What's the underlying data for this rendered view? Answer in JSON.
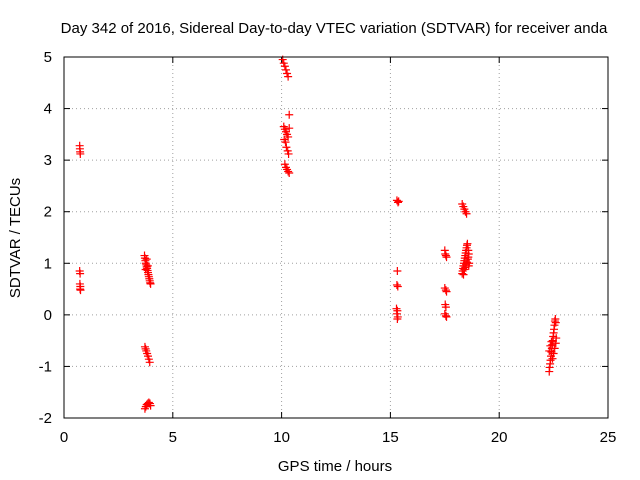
{
  "chart_data": {
    "type": "scatter",
    "title": "Day 342 of 2016, Sidereal Day-to-day VTEC variation (SDTVAR) for receiver anda",
    "xlabel": "GPS time / hours",
    "ylabel": "SDTVAR / TECUs",
    "xlim": [
      0,
      25
    ],
    "ylim": [
      -2,
      5
    ],
    "xticks": [
      0,
      5,
      10,
      15,
      20,
      25
    ],
    "yticks": [
      -2,
      -1,
      0,
      1,
      2,
      3,
      4,
      5
    ],
    "xtick_labels": [
      "0",
      "5",
      "10",
      "15",
      "20",
      "25"
    ],
    "ytick_labels": [
      "-2",
      "-1",
      "0",
      "1",
      "2",
      "3",
      "4",
      "5"
    ],
    "grid": true,
    "marker": "+",
    "series": [
      {
        "name": "SDTVAR",
        "color": "#ff0000",
        "points": [
          [
            0.72,
            3.28
          ],
          [
            0.73,
            3.22
          ],
          [
            0.74,
            3.16
          ],
          [
            0.75,
            3.12
          ],
          [
            0.72,
            0.85
          ],
          [
            0.74,
            0.8
          ],
          [
            0.73,
            0.6
          ],
          [
            0.75,
            0.55
          ],
          [
            0.74,
            0.5
          ],
          [
            0.76,
            0.48
          ],
          [
            3.7,
            1.15
          ],
          [
            3.72,
            1.1
          ],
          [
            3.74,
            1.05
          ],
          [
            3.76,
            1.0
          ],
          [
            3.78,
            0.97
          ],
          [
            3.8,
            0.93
          ],
          [
            3.82,
            0.9
          ],
          [
            3.84,
            0.86
          ],
          [
            3.86,
            0.82
          ],
          [
            3.88,
            0.78
          ],
          [
            3.9,
            0.74
          ],
          [
            3.92,
            0.7
          ],
          [
            3.94,
            0.66
          ],
          [
            3.96,
            0.62
          ],
          [
            3.98,
            0.6
          ],
          [
            3.75,
            0.88
          ],
          [
            3.8,
            1.08
          ],
          [
            3.85,
            0.95
          ],
          [
            3.72,
            -0.62
          ],
          [
            3.75,
            -0.66
          ],
          [
            3.78,
            -0.7
          ],
          [
            3.82,
            -0.75
          ],
          [
            3.86,
            -0.8
          ],
          [
            3.9,
            -0.86
          ],
          [
            3.94,
            -0.92
          ],
          [
            3.72,
            -1.82
          ],
          [
            3.76,
            -1.78
          ],
          [
            3.8,
            -1.74
          ],
          [
            3.85,
            -1.72
          ],
          [
            3.9,
            -1.7
          ],
          [
            3.95,
            -1.72
          ],
          [
            3.98,
            -1.76
          ],
          [
            10.05,
            4.95
          ],
          [
            10.1,
            4.88
          ],
          [
            10.15,
            4.82
          ],
          [
            10.2,
            4.75
          ],
          [
            10.25,
            4.68
          ],
          [
            10.3,
            4.62
          ],
          [
            10.35,
            3.88
          ],
          [
            10.1,
            3.65
          ],
          [
            10.15,
            3.6
          ],
          [
            10.2,
            3.55
          ],
          [
            10.25,
            3.5
          ],
          [
            10.3,
            3.45
          ],
          [
            10.12,
            3.4
          ],
          [
            10.18,
            3.35
          ],
          [
            10.22,
            3.25
          ],
          [
            10.28,
            3.18
          ],
          [
            10.32,
            3.12
          ],
          [
            10.35,
            3.62
          ],
          [
            10.15,
            2.92
          ],
          [
            10.2,
            2.86
          ],
          [
            10.25,
            2.82
          ],
          [
            10.3,
            2.78
          ],
          [
            10.35,
            2.75
          ],
          [
            15.3,
            2.22
          ],
          [
            15.35,
            2.18
          ],
          [
            15.38,
            2.2
          ],
          [
            15.32,
            0.85
          ],
          [
            15.3,
            0.58
          ],
          [
            15.34,
            0.55
          ],
          [
            15.28,
            0.12
          ],
          [
            15.32,
            0.08
          ],
          [
            15.3,
            0.02
          ],
          [
            15.34,
            -0.04
          ],
          [
            15.32,
            -0.08
          ],
          [
            17.5,
            1.25
          ],
          [
            17.52,
            1.18
          ],
          [
            17.55,
            1.15
          ],
          [
            17.58,
            1.12
          ],
          [
            17.5,
            0.52
          ],
          [
            17.55,
            0.48
          ],
          [
            17.58,
            0.45
          ],
          [
            17.52,
            0.2
          ],
          [
            17.55,
            0.15
          ],
          [
            17.5,
            0.02
          ],
          [
            17.55,
            -0.02
          ],
          [
            17.58,
            -0.04
          ],
          [
            18.3,
            2.15
          ],
          [
            18.35,
            2.1
          ],
          [
            18.4,
            2.05
          ],
          [
            18.45,
            2.0
          ],
          [
            18.5,
            1.96
          ],
          [
            18.3,
            0.8
          ],
          [
            18.32,
            0.85
          ],
          [
            18.34,
            0.9
          ],
          [
            18.36,
            0.95
          ],
          [
            18.38,
            1.0
          ],
          [
            18.4,
            1.05
          ],
          [
            18.42,
            1.1
          ],
          [
            18.44,
            1.15
          ],
          [
            18.46,
            1.2
          ],
          [
            18.48,
            1.25
          ],
          [
            18.5,
            1.3
          ],
          [
            18.52,
            1.35
          ],
          [
            18.54,
            1.38
          ],
          [
            18.36,
            0.78
          ],
          [
            18.4,
            0.88
          ],
          [
            18.44,
            0.92
          ],
          [
            18.48,
            0.98
          ],
          [
            18.52,
            1.02
          ],
          [
            18.56,
            1.08
          ],
          [
            18.58,
            1.12
          ],
          [
            18.6,
            1.18
          ],
          [
            18.62,
            1.0
          ],
          [
            18.6,
            0.95
          ],
          [
            18.58,
            1.25
          ],
          [
            22.3,
            -1.1
          ],
          [
            22.32,
            -1.02
          ],
          [
            22.34,
            -0.95
          ],
          [
            22.36,
            -0.88
          ],
          [
            22.38,
            -0.8
          ],
          [
            22.4,
            -0.72
          ],
          [
            22.42,
            -0.65
          ],
          [
            22.44,
            -0.58
          ],
          [
            22.46,
            -0.5
          ],
          [
            22.48,
            -0.42
          ],
          [
            22.5,
            -0.35
          ],
          [
            22.52,
            -0.28
          ],
          [
            22.54,
            -0.2
          ],
          [
            22.56,
            -0.12
          ],
          [
            22.58,
            -0.08
          ],
          [
            22.6,
            -0.15
          ],
          [
            22.35,
            -0.6
          ],
          [
            22.4,
            -0.52
          ],
          [
            22.45,
            -0.85
          ],
          [
            22.5,
            -0.75
          ],
          [
            22.55,
            -0.65
          ],
          [
            22.6,
            -0.55
          ],
          [
            22.62,
            -0.45
          ],
          [
            22.3,
            -0.7
          ]
        ]
      }
    ]
  }
}
